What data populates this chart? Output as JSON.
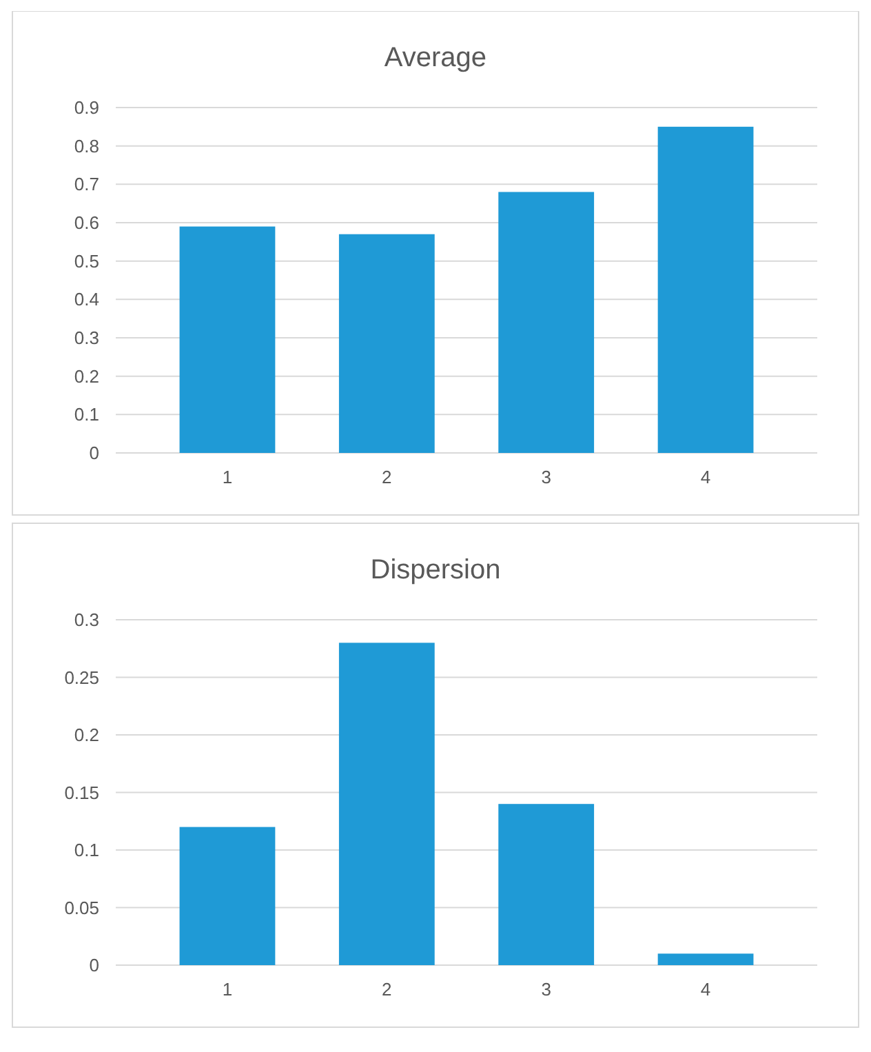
{
  "chart_data": [
    {
      "type": "bar",
      "title": "Average",
      "categories": [
        "1",
        "2",
        "3",
        "4"
      ],
      "values": [
        0.59,
        0.57,
        0.68,
        0.85
      ],
      "color": "#1f9ad6",
      "ylim": [
        0,
        0.9
      ],
      "yticks": [
        0,
        0.1,
        0.2,
        0.3,
        0.4,
        0.5,
        0.6,
        0.7,
        0.8,
        0.9
      ],
      "grid": "y"
    },
    {
      "type": "bar",
      "title": "Dispersion",
      "categories": [
        "1",
        "2",
        "3",
        "4"
      ],
      "values": [
        0.12,
        0.28,
        0.14,
        0.01
      ],
      "color": "#1f9ad6",
      "ylim": [
        0,
        0.3
      ],
      "yticks": [
        0,
        0.05,
        0.1,
        0.15,
        0.2,
        0.25,
        0.3
      ],
      "grid": "y"
    }
  ]
}
